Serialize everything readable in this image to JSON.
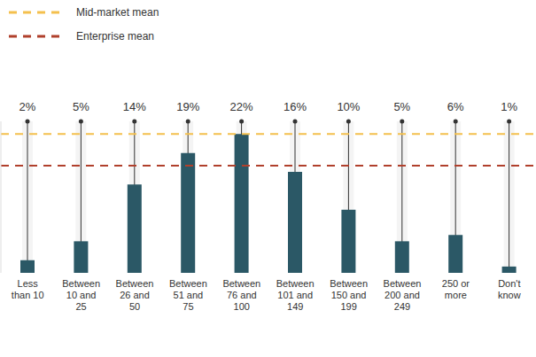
{
  "chart_data": {
    "type": "bar",
    "categories": [
      "Less than 10",
      "Between 10 and 25",
      "Between 26 and 50",
      "Between 51 and 75",
      "Between 76 and 100",
      "Between 101 and 149",
      "Between 150 and 199",
      "Between 200 and 249",
      "250 or more",
      "Don't know"
    ],
    "values": [
      2,
      5,
      14,
      19,
      22,
      16,
      10,
      5,
      6,
      1
    ],
    "value_labels": [
      "2%",
      "5%",
      "14%",
      "19%",
      "22%",
      "16%",
      "10%",
      "5%",
      "6%",
      "1%"
    ],
    "color": "#2b5866",
    "ylim": [
      0,
      24
    ],
    "yticks": [
      0,
      24
    ],
    "tick_labels": "x",
    "grid": false,
    "data_labels": true,
    "legend": "top-left",
    "reference_lines": [
      {
        "name": "Mid-market mean",
        "value": 22,
        "color": "#f4c04d",
        "line_style": "dashed"
      },
      {
        "name": "Enterprise mean",
        "value": 17,
        "color": "#b0402c",
        "line_style": "dashed"
      }
    ]
  }
}
